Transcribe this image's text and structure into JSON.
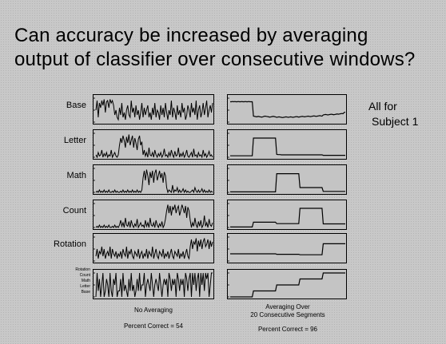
{
  "slide": {
    "title_line1": "Can accuracy be increased by averaging",
    "title_line2": "output of classifier over consecutive windows?",
    "note_line1": "All for",
    "note_line2": "Subject 1"
  },
  "columns": [
    {
      "caption_line1": "No Averaging",
      "caption_line2": "",
      "percent_text": "Percent Correct = 54"
    },
    {
      "caption_line1": "Averaging Over",
      "caption_line2": "20 Consecutive Segments",
      "percent_text": "Percent Correct = 96"
    }
  ],
  "state_axis_labels": [
    "Rotation",
    "Count",
    "Math",
    "Letter",
    "Base"
  ],
  "colors": {
    "background": "#c8c8c8",
    "line": "#000000",
    "panel_border": "#000000"
  },
  "chart_data": {
    "type": "line",
    "description_segments": [
      "Base",
      "Letter",
      "Math",
      "Count",
      "Rotation"
    ],
    "x": {
      "min": 0,
      "max": 100
    },
    "rows": [
      {
        "label": "Base",
        "no_averaging": [
          0.5,
          0.9,
          0.2,
          0.8,
          0.6,
          0.9,
          0.7,
          0.95,
          0.4,
          0.85,
          0.9,
          0.6,
          0.95,
          0.8,
          0.9,
          0.7,
          0.3,
          0.5,
          0.2,
          0.1,
          0.6,
          0.3,
          0.8,
          0.2,
          0.4,
          0.1,
          0.5,
          0.7,
          0.3,
          0.2,
          0.9,
          0.4,
          0.6,
          0.2,
          0.7,
          0.3,
          0.5,
          0.1,
          0.4,
          0.8,
          0.2,
          0.6,
          0.3,
          0.5,
          0.7,
          0.2,
          0.4,
          0.1,
          0.6,
          0.3,
          0.8,
          0.2,
          0.5,
          0.4,
          0.1,
          0.7,
          0.3,
          0.6,
          0.2,
          0.8,
          0.4,
          0.1,
          0.5,
          0.3,
          0.9,
          0.2,
          0.6,
          0.4,
          0.1,
          0.7,
          0.3,
          0.5,
          0.2,
          0.8,
          0.4,
          0.6,
          0.1,
          0.3,
          0.7,
          0.5,
          0.2,
          0.8,
          0.4,
          0.6,
          0.3,
          0.9,
          0.1,
          0.5,
          0.7,
          0.2,
          0.4,
          0.8,
          0.3,
          0.6,
          0.9,
          0.2,
          0.5,
          0.7,
          0.4,
          0.8
        ],
        "averaged": [
          0.85,
          0.85,
          0.86,
          0.85,
          0.86,
          0.85,
          0.85,
          0.86,
          0.85,
          0.85,
          0.86,
          0.85,
          0.85,
          0.86,
          0.85,
          0.85,
          0.86,
          0.85,
          0.85,
          0.85,
          0.25,
          0.24,
          0.23,
          0.22,
          0.24,
          0.23,
          0.22,
          0.21,
          0.22,
          0.24,
          0.25,
          0.24,
          0.23,
          0.22,
          0.21,
          0.22,
          0.23,
          0.24,
          0.23,
          0.22,
          0.2,
          0.21,
          0.22,
          0.21,
          0.2,
          0.19,
          0.2,
          0.21,
          0.22,
          0.21,
          0.2,
          0.21,
          0.22,
          0.21,
          0.2,
          0.21,
          0.22,
          0.23,
          0.22,
          0.21,
          0.22,
          0.23,
          0.24,
          0.23,
          0.22,
          0.23,
          0.24,
          0.25,
          0.24,
          0.23,
          0.24,
          0.25,
          0.26,
          0.25,
          0.24,
          0.25,
          0.26,
          0.27,
          0.26,
          0.25,
          0.3,
          0.31,
          0.32,
          0.31,
          0.3,
          0.31,
          0.32,
          0.33,
          0.32,
          0.31,
          0.32,
          0.33,
          0.34,
          0.33,
          0.34,
          0.35,
          0.36,
          0.35,
          0.4,
          0.42
        ]
      },
      {
        "label": "Letter",
        "no_averaging": [
          0.1,
          0.0,
          0.2,
          0.05,
          0.1,
          0.3,
          0.0,
          0.15,
          0.05,
          0.2,
          0.0,
          0.1,
          0.05,
          0.3,
          0.0,
          0.1,
          0.2,
          0.05,
          0.0,
          0.1,
          0.5,
          0.8,
          0.6,
          0.9,
          0.7,
          0.4,
          0.85,
          0.6,
          0.95,
          0.5,
          0.7,
          0.9,
          0.4,
          0.8,
          0.6,
          0.3,
          0.75,
          0.9,
          0.5,
          0.65,
          0.1,
          0.3,
          0.05,
          0.2,
          0.0,
          0.4,
          0.1,
          0.05,
          0.2,
          0.0,
          0.3,
          0.1,
          0.0,
          0.15,
          0.05,
          0.2,
          0.0,
          0.1,
          0.35,
          0.05,
          0.1,
          0.0,
          0.2,
          0.05,
          0.3,
          0.1,
          0.0,
          0.25,
          0.05,
          0.1,
          0.4,
          0.0,
          0.15,
          0.05,
          0.2,
          0.0,
          0.1,
          0.3,
          0.05,
          0.0,
          0.1,
          0.2,
          0.0,
          0.35,
          0.05,
          0.1,
          0.0,
          0.2,
          0.05,
          0.1,
          0.0,
          0.3,
          0.05,
          0.15,
          0.0,
          0.1,
          0.25,
          0.05,
          0.1,
          0.0
        ],
        "averaged": [
          0.06,
          0.06,
          0.06,
          0.06,
          0.06,
          0.06,
          0.06,
          0.06,
          0.06,
          0.06,
          0.06,
          0.06,
          0.06,
          0.06,
          0.06,
          0.06,
          0.06,
          0.06,
          0.06,
          0.06,
          0.8,
          0.8,
          0.8,
          0.8,
          0.8,
          0.8,
          0.8,
          0.8,
          0.8,
          0.8,
          0.8,
          0.8,
          0.8,
          0.8,
          0.8,
          0.8,
          0.8,
          0.8,
          0.8,
          0.8,
          0.12,
          0.11,
          0.11,
          0.11,
          0.1,
          0.1,
          0.1,
          0.1,
          0.1,
          0.1,
          0.1,
          0.1,
          0.1,
          0.1,
          0.1,
          0.1,
          0.1,
          0.1,
          0.1,
          0.1,
          0.1,
          0.1,
          0.1,
          0.1,
          0.1,
          0.1,
          0.1,
          0.1,
          0.1,
          0.1,
          0.1,
          0.1,
          0.1,
          0.1,
          0.1,
          0.1,
          0.1,
          0.1,
          0.1,
          0.1,
          0.08,
          0.08,
          0.08,
          0.08,
          0.08,
          0.08,
          0.08,
          0.08,
          0.08,
          0.08,
          0.08,
          0.08,
          0.08,
          0.08,
          0.08,
          0.08,
          0.08,
          0.08,
          0.08,
          0.08
        ]
      },
      {
        "label": "Math",
        "no_averaging": [
          0.0,
          0.05,
          0.0,
          0.1,
          0.0,
          0.05,
          0.0,
          0.1,
          0.0,
          0.05,
          0.0,
          0.1,
          0.0,
          0.0,
          0.05,
          0.0,
          0.1,
          0.0,
          0.05,
          0.0,
          0.0,
          0.05,
          0.0,
          0.1,
          0.0,
          0.05,
          0.0,
          0.1,
          0.0,
          0.05,
          0.0,
          0.1,
          0.0,
          0.05,
          0.0,
          0.1,
          0.0,
          0.05,
          0.0,
          0.1,
          0.6,
          0.9,
          0.5,
          0.95,
          0.7,
          0.3,
          0.85,
          0.6,
          0.9,
          0.4,
          0.8,
          0.95,
          0.5,
          0.7,
          0.9,
          0.6,
          0.8,
          0.4,
          0.85,
          0.7,
          0.2,
          0.0,
          0.1,
          0.05,
          0.0,
          0.3,
          0.0,
          0.1,
          0.05,
          0.2,
          0.0,
          0.1,
          0.0,
          0.05,
          0.15,
          0.0,
          0.1,
          0.0,
          0.05,
          0.0,
          0.0,
          0.05,
          0.1,
          0.0,
          0.2,
          0.05,
          0.0,
          0.1,
          0.0,
          0.05,
          0.15,
          0.0,
          0.1,
          0.0,
          0.05,
          0.0,
          0.1,
          0.0,
          0.05,
          0.0
        ],
        "averaged": [
          0.02,
          0.02,
          0.02,
          0.02,
          0.02,
          0.02,
          0.02,
          0.02,
          0.02,
          0.02,
          0.02,
          0.02,
          0.02,
          0.02,
          0.02,
          0.02,
          0.02,
          0.02,
          0.02,
          0.02,
          0.02,
          0.02,
          0.02,
          0.02,
          0.02,
          0.02,
          0.02,
          0.02,
          0.02,
          0.02,
          0.02,
          0.02,
          0.02,
          0.02,
          0.02,
          0.02,
          0.02,
          0.02,
          0.02,
          0.02,
          0.78,
          0.78,
          0.78,
          0.78,
          0.78,
          0.78,
          0.78,
          0.78,
          0.78,
          0.78,
          0.78,
          0.78,
          0.78,
          0.78,
          0.78,
          0.78,
          0.78,
          0.78,
          0.78,
          0.78,
          0.2,
          0.2,
          0.2,
          0.2,
          0.2,
          0.2,
          0.2,
          0.2,
          0.2,
          0.2,
          0.2,
          0.2,
          0.2,
          0.2,
          0.2,
          0.2,
          0.2,
          0.2,
          0.2,
          0.2,
          0.04,
          0.04,
          0.04,
          0.04,
          0.04,
          0.04,
          0.04,
          0.04,
          0.04,
          0.04,
          0.04,
          0.04,
          0.04,
          0.04,
          0.04,
          0.04,
          0.04,
          0.04,
          0.04,
          0.04
        ]
      },
      {
        "label": "Count",
        "no_averaging": [
          0.0,
          0.05,
          0.0,
          0.1,
          0.0,
          0.05,
          0.0,
          0.1,
          0.0,
          0.05,
          0.0,
          0.1,
          0.0,
          0.0,
          0.05,
          0.0,
          0.1,
          0.0,
          0.05,
          0.0,
          0.1,
          0.3,
          0.05,
          0.2,
          0.0,
          0.4,
          0.1,
          0.05,
          0.25,
          0.0,
          0.3,
          0.1,
          0.0,
          0.15,
          0.05,
          0.35,
          0.0,
          0.1,
          0.2,
          0.05,
          0.1,
          0.0,
          0.3,
          0.05,
          0.2,
          0.0,
          0.4,
          0.1,
          0.05,
          0.2,
          0.0,
          0.3,
          0.1,
          0.0,
          0.15,
          0.05,
          0.25,
          0.0,
          0.1,
          0.35,
          0.7,
          0.95,
          0.6,
          0.9,
          0.5,
          0.85,
          0.75,
          0.95,
          0.6,
          0.8,
          0.9,
          0.5,
          0.7,
          0.95,
          0.8,
          0.6,
          0.9,
          0.4,
          0.85,
          0.7,
          0.3,
          0.0,
          0.2,
          0.05,
          0.4,
          0.1,
          0.0,
          0.25,
          0.05,
          0.3,
          0.0,
          0.1,
          0.5,
          0.05,
          0.2,
          0.0,
          0.35,
          0.1,
          0.05,
          0.2
        ],
        "averaged": [
          0.02,
          0.02,
          0.02,
          0.02,
          0.02,
          0.02,
          0.02,
          0.02,
          0.02,
          0.02,
          0.02,
          0.02,
          0.02,
          0.02,
          0.02,
          0.02,
          0.02,
          0.02,
          0.02,
          0.02,
          0.22,
          0.22,
          0.22,
          0.22,
          0.22,
          0.22,
          0.22,
          0.22,
          0.22,
          0.22,
          0.22,
          0.22,
          0.22,
          0.22,
          0.22,
          0.22,
          0.22,
          0.22,
          0.22,
          0.22,
          0.16,
          0.16,
          0.16,
          0.16,
          0.16,
          0.16,
          0.16,
          0.16,
          0.16,
          0.16,
          0.16,
          0.16,
          0.16,
          0.16,
          0.16,
          0.16,
          0.16,
          0.16,
          0.16,
          0.16,
          0.8,
          0.8,
          0.8,
          0.8,
          0.8,
          0.8,
          0.8,
          0.8,
          0.8,
          0.8,
          0.8,
          0.8,
          0.8,
          0.8,
          0.8,
          0.8,
          0.8,
          0.8,
          0.8,
          0.8,
          0.15,
          0.15,
          0.15,
          0.15,
          0.15,
          0.15,
          0.15,
          0.15,
          0.15,
          0.15,
          0.15,
          0.15,
          0.15,
          0.15,
          0.15,
          0.15,
          0.15,
          0.15,
          0.15,
          0.15
        ]
      },
      {
        "label": "Rotation",
        "no_averaging": [
          0.2,
          0.5,
          0.1,
          0.4,
          0.3,
          0.6,
          0.2,
          0.5,
          0.1,
          0.3,
          0.4,
          0.2,
          0.6,
          0.1,
          0.5,
          0.3,
          0.2,
          0.4,
          0.1,
          0.3,
          0.2,
          0.4,
          0.1,
          0.5,
          0.3,
          0.2,
          0.6,
          0.1,
          0.4,
          0.3,
          0.5,
          0.2,
          0.1,
          0.4,
          0.3,
          0.2,
          0.5,
          0.1,
          0.3,
          0.4,
          0.1,
          0.3,
          0.2,
          0.5,
          0.1,
          0.4,
          0.3,
          0.2,
          0.6,
          0.1,
          0.3,
          0.5,
          0.2,
          0.1,
          0.4,
          0.3,
          0.2,
          0.5,
          0.1,
          0.3,
          0.2,
          0.4,
          0.1,
          0.3,
          0.5,
          0.2,
          0.1,
          0.4,
          0.3,
          0.2,
          0.5,
          0.1,
          0.3,
          0.2,
          0.4,
          0.1,
          0.3,
          0.5,
          0.2,
          0.1,
          0.6,
          0.9,
          0.5,
          0.8,
          0.7,
          0.95,
          0.4,
          0.85,
          0.6,
          0.9,
          0.5,
          0.8,
          0.95,
          0.6,
          0.7,
          0.9,
          0.5,
          0.85,
          0.6,
          0.8
        ],
        "averaged": [
          0.3,
          0.3,
          0.3,
          0.3,
          0.3,
          0.3,
          0.3,
          0.3,
          0.3,
          0.3,
          0.3,
          0.3,
          0.3,
          0.3,
          0.3,
          0.3,
          0.3,
          0.3,
          0.3,
          0.3,
          0.3,
          0.3,
          0.3,
          0.3,
          0.3,
          0.3,
          0.3,
          0.3,
          0.3,
          0.3,
          0.3,
          0.3,
          0.3,
          0.3,
          0.3,
          0.3,
          0.3,
          0.3,
          0.3,
          0.3,
          0.28,
          0.28,
          0.28,
          0.28,
          0.28,
          0.28,
          0.28,
          0.28,
          0.28,
          0.28,
          0.28,
          0.28,
          0.28,
          0.28,
          0.28,
          0.28,
          0.28,
          0.28,
          0.28,
          0.28,
          0.26,
          0.26,
          0.26,
          0.26,
          0.26,
          0.26,
          0.26,
          0.26,
          0.26,
          0.26,
          0.26,
          0.26,
          0.26,
          0.26,
          0.26,
          0.26,
          0.26,
          0.26,
          0.26,
          0.26,
          0.72,
          0.72,
          0.72,
          0.72,
          0.72,
          0.72,
          0.72,
          0.72,
          0.72,
          0.72,
          0.72,
          0.72,
          0.72,
          0.72,
          0.72,
          0.72,
          0.72,
          0.72,
          0.72,
          0.72
        ]
      },
      {
        "label": "",
        "kind": "state",
        "states": [
          "Base",
          "Letter",
          "Math",
          "Count",
          "Rotation"
        ],
        "no_averaging": [
          0,
          4,
          1,
          3,
          0,
          2,
          4,
          0,
          1,
          3,
          2,
          0,
          4,
          1,
          0,
          3,
          2,
          4,
          0,
          1,
          1,
          3,
          0,
          4,
          1,
          2,
          1,
          0,
          3,
          1,
          4,
          1,
          2,
          0,
          1,
          3,
          1,
          4,
          1,
          2,
          2,
          4,
          0,
          2,
          3,
          2,
          1,
          4,
          2,
          0,
          2,
          3,
          2,
          1,
          4,
          2,
          0,
          2,
          3,
          2,
          3,
          0,
          4,
          3,
          1,
          3,
          2,
          3,
          0,
          4,
          3,
          1,
          3,
          2,
          3,
          0,
          4,
          3,
          1,
          3,
          4,
          0,
          4,
          2,
          4,
          1,
          3,
          4,
          0,
          4,
          2,
          4,
          1,
          4,
          3,
          4,
          0,
          2,
          4,
          4
        ],
        "averaged": [
          0,
          0,
          0,
          0,
          0,
          0,
          0,
          0,
          0,
          0,
          0,
          0,
          0,
          0,
          0,
          0,
          0,
          0,
          0,
          0,
          1,
          1,
          1,
          1,
          1,
          1,
          1,
          1,
          1,
          1,
          1,
          1,
          1,
          1,
          1,
          1,
          1,
          1,
          1,
          1,
          2,
          2,
          2,
          2,
          2,
          2,
          2,
          2,
          2,
          2,
          2,
          2,
          2,
          2,
          2,
          2,
          2,
          2,
          2,
          2,
          3,
          3,
          3,
          3,
          3,
          3,
          3,
          3,
          3,
          3,
          3,
          3,
          3,
          3,
          3,
          3,
          3,
          3,
          3,
          3,
          4,
          4,
          4,
          4,
          4,
          4,
          4,
          4,
          4,
          4,
          4,
          4,
          4,
          4,
          4,
          4,
          4,
          4,
          4,
          4
        ]
      }
    ]
  }
}
